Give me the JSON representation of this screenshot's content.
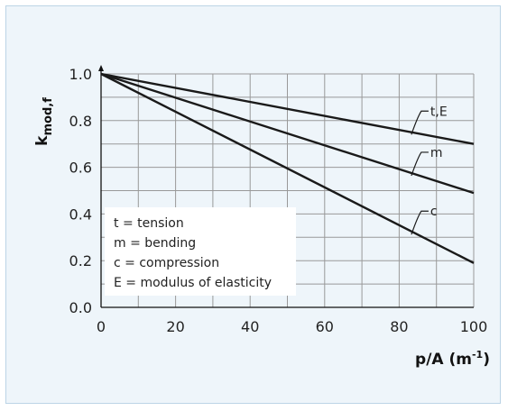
{
  "chart_data": {
    "type": "line",
    "ylabel_main": "k",
    "ylabel_sub": "mod,f",
    "xlabel_main": "p/A (m",
    "xlabel_sup": "-1",
    "xlabel_close": ")",
    "xlim": [
      0,
      100
    ],
    "ylim": [
      0.0,
      1.0
    ],
    "x_ticks": [
      "0",
      "20",
      "40",
      "60",
      "80",
      "100"
    ],
    "y_ticks": [
      "0.0",
      "0.2",
      "0.4",
      "0.6",
      "0.8",
      "1.0"
    ],
    "grid": true,
    "series": [
      {
        "name": "t,E",
        "x": [
          0,
          100
        ],
        "y": [
          1.0,
          0.7
        ],
        "label_x": 84
      },
      {
        "name": "m",
        "x": [
          0,
          100
        ],
        "y": [
          1.0,
          0.49
        ],
        "label_x": 84
      },
      {
        "name": "c",
        "x": [
          0,
          100
        ],
        "y": [
          1.0,
          0.19
        ],
        "label_x": 84
      }
    ],
    "legend": {
      "placement": "bottom-left",
      "items": [
        "t = tension",
        "m = bending",
        "c = compression",
        "E = modulus of elasticity"
      ]
    },
    "colors": {
      "line": "#1a1a1a",
      "grid": "#999999",
      "background": "#eef5fa",
      "border": "#bcd4e6"
    }
  }
}
